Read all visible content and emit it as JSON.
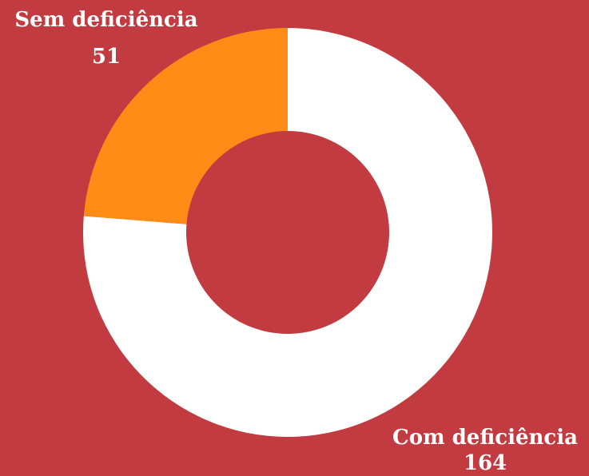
{
  "chart_data": {
    "type": "donut",
    "categories": [
      "Com deficiência",
      "Sem deficiência"
    ],
    "values": [
      164,
      51
    ],
    "colors": [
      "#ffffff",
      "#ff8c16"
    ]
  }
}
